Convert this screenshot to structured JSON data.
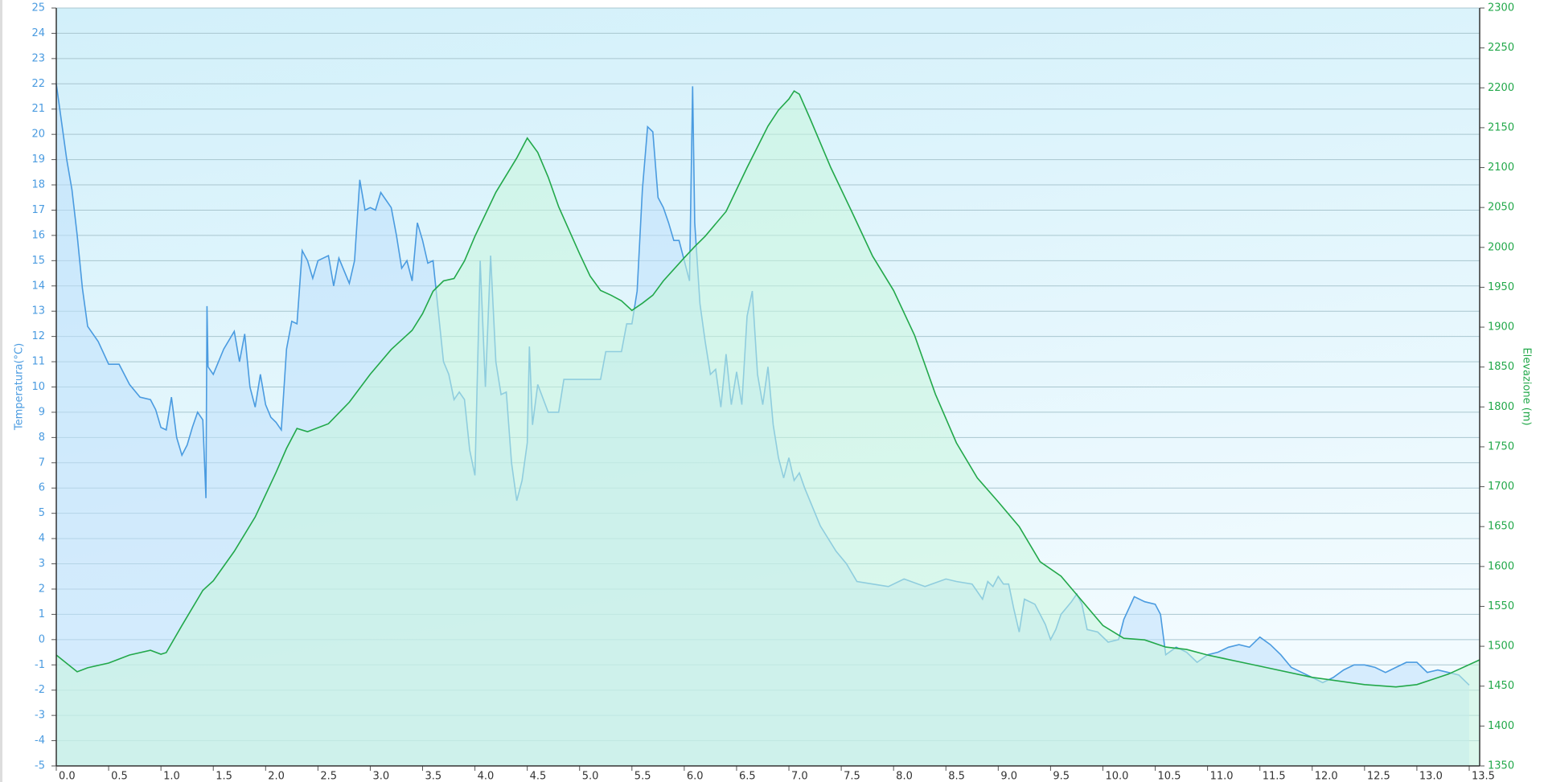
{
  "chart_data": {
    "type": "line",
    "y_label": "Temperatura(°C)",
    "y2_label": "Elevazione (m)",
    "xlim": [
      0,
      13.6
    ],
    "ylim": [
      -5,
      25
    ],
    "y2lim": [
      1350,
      2300
    ],
    "grid": true,
    "xticks": [
      {
        "value": 0,
        "label": "0.0"
      },
      {
        "value": 0.5,
        "label": "0.5"
      },
      {
        "value": 1,
        "label": "1.0"
      },
      {
        "value": 1.5,
        "label": "1.5"
      },
      {
        "value": 2,
        "label": "2.0"
      },
      {
        "value": 2.5,
        "label": "2.5"
      },
      {
        "value": 3,
        "label": "3.0"
      },
      {
        "value": 3.5,
        "label": "3.5"
      },
      {
        "value": 4,
        "label": "4.0"
      },
      {
        "value": 4.5,
        "label": "4.5"
      },
      {
        "value": 5,
        "label": "5.0"
      },
      {
        "value": 5.5,
        "label": "5.5"
      },
      {
        "value": 6,
        "label": "6.0"
      },
      {
        "value": 6.5,
        "label": "6.5"
      },
      {
        "value": 7,
        "label": "7.0"
      },
      {
        "value": 7.5,
        "label": "7.5"
      },
      {
        "value": 8,
        "label": "8.0"
      },
      {
        "value": 8.5,
        "label": "8.5"
      },
      {
        "value": 9,
        "label": "9.0"
      },
      {
        "value": 9.5,
        "label": "9.5"
      },
      {
        "value": 10,
        "label": "10.0"
      },
      {
        "value": 10.5,
        "label": "10.5"
      },
      {
        "value": 11,
        "label": "11.0"
      },
      {
        "value": 11.5,
        "label": "11.5"
      },
      {
        "value": 12,
        "label": "12.0"
      },
      {
        "value": 12.5,
        "label": "12.5"
      },
      {
        "value": 13,
        "label": "13.0"
      },
      {
        "value": 13.5,
        "label": "13.5"
      }
    ],
    "yticks": [
      -5,
      -4,
      -3,
      -2,
      -1,
      0,
      1,
      2,
      3,
      4,
      5,
      6,
      7,
      8,
      9,
      10,
      11,
      12,
      13,
      14,
      15,
      16,
      17,
      18,
      19,
      20,
      21,
      22,
      23,
      24,
      25
    ],
    "y2ticks": [
      1350,
      1400,
      1450,
      1500,
      1550,
      1600,
      1650,
      1700,
      1750,
      1800,
      1850,
      1900,
      1950,
      2000,
      2050,
      2100,
      2150,
      2200,
      2250,
      2300
    ],
    "series": [
      {
        "color": "#4a9be0",
        "fill": "#bfe0fb",
        "axis": "y",
        "x": [
          0,
          0.05,
          0.1,
          0.15,
          0.2,
          0.25,
          0.3,
          0.4,
          0.5,
          0.6,
          0.7,
          0.8,
          0.9,
          0.95,
          1,
          1.05,
          1.1,
          1.15,
          1.2,
          1.25,
          1.3,
          1.35,
          1.4,
          1.43,
          1.44,
          1.45,
          1.5,
          1.6,
          1.7,
          1.75,
          1.8,
          1.85,
          1.9,
          1.95,
          2,
          2.05,
          2.1,
          2.15,
          2.2,
          2.25,
          2.3,
          2.35,
          2.4,
          2.45,
          2.5,
          2.6,
          2.65,
          2.7,
          2.8,
          2.85,
          2.9,
          2.95,
          3,
          3.05,
          3.1,
          3.2,
          3.25,
          3.3,
          3.35,
          3.4,
          3.45,
          3.5,
          3.55,
          3.6,
          3.65,
          3.7,
          3.75,
          3.8,
          3.85,
          3.9,
          3.95,
          4,
          4.05,
          4.1,
          4.15,
          4.2,
          4.25,
          4.3,
          4.35,
          4.4,
          4.45,
          4.5,
          4.52,
          4.55,
          4.6,
          4.7,
          4.8,
          4.85,
          5,
          5.2,
          5.25,
          5.4,
          5.45,
          5.5,
          5.55,
          5.6,
          5.65,
          5.7,
          5.75,
          5.8,
          5.85,
          5.9,
          5.95,
          6,
          6.05,
          6.08,
          6.1,
          6.15,
          6.2,
          6.25,
          6.3,
          6.35,
          6.4,
          6.45,
          6.5,
          6.55,
          6.6,
          6.65,
          6.7,
          6.75,
          6.8,
          6.85,
          6.9,
          6.95,
          7,
          7.05,
          7.1,
          7.15,
          7.3,
          7.45,
          7.55,
          7.65,
          7.8,
          7.95,
          8.1,
          8.3,
          8.5,
          8.6,
          8.75,
          8.85,
          8.9,
          8.95,
          9,
          9.05,
          9.1,
          9.15,
          9.2,
          9.25,
          9.35,
          9.45,
          9.5,
          9.55,
          9.6,
          9.7,
          9.75,
          9.8,
          9.85,
          9.95,
          10.05,
          10.15,
          10.2,
          10.3,
          10.4,
          10.5,
          10.55,
          10.6,
          10.7,
          10.8,
          10.9,
          11,
          11.1,
          11.2,
          11.3,
          11.4,
          11.5,
          11.6,
          11.7,
          11.8,
          11.9,
          12,
          12.1,
          12.2,
          12.3,
          12.4,
          12.5,
          12.6,
          12.7,
          12.8,
          12.9,
          13,
          13.1,
          13.2,
          13.3,
          13.4,
          13.5
        ],
        "values": [
          22,
          20.5,
          19,
          17.8,
          16,
          13.9,
          12.4,
          11.8,
          10.9,
          10.9,
          10.1,
          9.6,
          9.5,
          9.1,
          8.4,
          8.3,
          9.6,
          8,
          7.3,
          7.7,
          8.4,
          9,
          8.7,
          5.6,
          13.2,
          10.8,
          10.5,
          11.5,
          12.2,
          11,
          12.1,
          10,
          9.2,
          10.5,
          9.3,
          8.8,
          8.6,
          8.3,
          11.5,
          12.6,
          12.5,
          15.4,
          15,
          14.3,
          15,
          15.2,
          14,
          15.1,
          14.1,
          15,
          18.2,
          17,
          17.1,
          17,
          17.7,
          17.1,
          16,
          14.7,
          15,
          14.2,
          16.5,
          15.8,
          14.9,
          15,
          13,
          11,
          10.5,
          9.5,
          9.8,
          9.5,
          7.5,
          6.5,
          15,
          10,
          15.2,
          11,
          9.7,
          9.8,
          7,
          5.5,
          6.3,
          7.8,
          11.6,
          8.5,
          10.1,
          9,
          9,
          10.3,
          10.3,
          10.3,
          11.4,
          11.4,
          12.5,
          12.5,
          13.8,
          17.8,
          20.3,
          20.1,
          17.5,
          17.1,
          16.5,
          15.8,
          15.8,
          15,
          14.2,
          21.9,
          16.5,
          13.3,
          11.8,
          10.5,
          10.7,
          9.2,
          11.3,
          9.3,
          10.6,
          9.3,
          12.8,
          13.8,
          10.5,
          9.3,
          10.8,
          8.5,
          7.2,
          6.4,
          7.2,
          6.3,
          6.6,
          6,
          4.5,
          3.5,
          3,
          2.3,
          2.2,
          2.1,
          2.4,
          2.1,
          2.4,
          2.3,
          2.2,
          1.6,
          2.3,
          2.1,
          2.5,
          2.2,
          2.2,
          1.2,
          0.3,
          1.6,
          1.4,
          0.6,
          0,
          0.4,
          1,
          1.5,
          1.8,
          1.4,
          0.4,
          0.3,
          -0.1,
          0,
          0.8,
          1.7,
          1.5,
          1.4,
          1,
          -0.6,
          -0.3,
          -0.5,
          -0.9,
          -0.6,
          -0.5,
          -0.3,
          -0.2,
          -0.3,
          0.1,
          -0.2,
          -0.6,
          -1.1,
          -1.3,
          -1.5,
          -1.7,
          -1.5,
          -1.2,
          -1,
          -1,
          -1.1,
          -1.3,
          -1.1,
          -0.9,
          -0.9,
          -1.3,
          -1.2,
          -1.3,
          -1.4,
          -1.8
        ]
      },
      {
        "color": "#22a84a",
        "fill": "#c8f5dc",
        "axis": "y2",
        "x": [
          0,
          0.2,
          0.3,
          0.5,
          0.7,
          0.9,
          1,
          1.05,
          1.2,
          1.4,
          1.5,
          1.7,
          1.9,
          2.1,
          2.2,
          2.3,
          2.4,
          2.6,
          2.8,
          3,
          3.2,
          3.4,
          3.5,
          3.6,
          3.7,
          3.8,
          3.9,
          4,
          4.2,
          4.4,
          4.5,
          4.6,
          4.7,
          4.8,
          5,
          5.1,
          5.2,
          5.3,
          5.4,
          5.5,
          5.6,
          5.7,
          5.8,
          6,
          6.1,
          6.2,
          6.4,
          6.6,
          6.8,
          6.9,
          7,
          7.05,
          7.1,
          7.2,
          7.4,
          7.6,
          7.8,
          8,
          8.2,
          8.4,
          8.6,
          8.8,
          9,
          9.2,
          9.4,
          9.6,
          9.8,
          10,
          10.2,
          10.4,
          10.6,
          10.8,
          11,
          11.5,
          12,
          12.5,
          12.8,
          13,
          13.3,
          13.6
        ],
        "values": [
          1489,
          1468,
          1473,
          1479,
          1489,
          1495,
          1490,
          1492,
          1526,
          1570,
          1582,
          1619,
          1662,
          1718,
          1748,
          1773,
          1769,
          1779,
          1806,
          1841,
          1872,
          1896,
          1917,
          1945,
          1958,
          1961,
          1983,
          2014,
          2069,
          2112,
          2137,
          2119,
          2088,
          2051,
          1992,
          1964,
          1946,
          1940,
          1933,
          1921,
          1930,
          1940,
          1958,
          1987,
          2001,
          2014,
          2045,
          2100,
          2152,
          2172,
          2186,
          2196,
          2192,
          2162,
          2100,
          2045,
          1989,
          1946,
          1890,
          1816,
          1755,
          1711,
          1681,
          1650,
          1606,
          1588,
          1557,
          1526,
          1510,
          1508,
          1499,
          1496,
          1489,
          1475,
          1461,
          1452,
          1449,
          1452,
          1465,
          1483
        ]
      }
    ]
  }
}
